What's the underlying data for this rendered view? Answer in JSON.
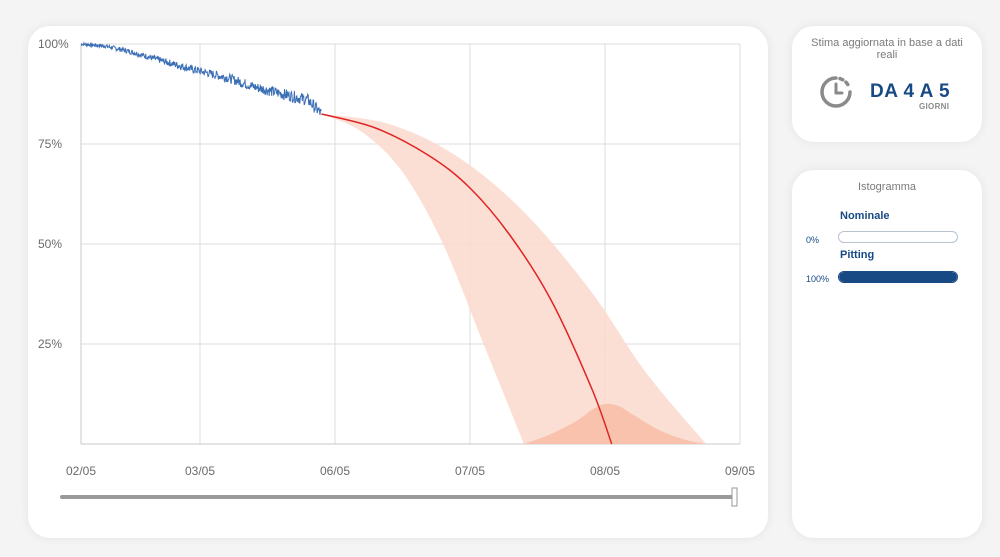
{
  "chart_data": {
    "type": "line",
    "y_ticks": [
      "100%",
      "75%",
      "50%",
      "25%"
    ],
    "x_ticks": [
      "02/05",
      "03/05",
      "06/05",
      "07/05",
      "08/05",
      "09/05"
    ],
    "grid": true,
    "series": [
      {
        "kind": "observed",
        "color": "#3a6eb5",
        "x": [
          0,
          0.2,
          0.4,
          0.6,
          0.8,
          1.0,
          1.2,
          1.4,
          1.6,
          1.8,
          1.9
        ],
        "y": [
          100,
          99.5,
          98.2,
          96.5,
          94.8,
          93.2,
          91.6,
          89.3,
          87.6,
          86.0,
          82.5
        ]
      },
      {
        "kind": "forecast",
        "color": "#e02424",
        "x": [
          1.9,
          2.3,
          2.7,
          3.0,
          3.3,
          3.6,
          3.9,
          4.05
        ],
        "y": [
          82.5,
          79,
          72,
          64,
          52,
          36,
          14,
          0
        ]
      }
    ],
    "band": {
      "color": "#fbd9cd",
      "upper": {
        "x": [
          1.9,
          2.4,
          2.9,
          3.4,
          3.9,
          4.3,
          4.75
        ],
        "y": [
          82.5,
          80,
          72,
          58,
          38,
          18,
          0
        ]
      },
      "lower": {
        "x": [
          1.9,
          2.2,
          2.5,
          2.8,
          3.1,
          3.4
        ],
        "y": [
          82.5,
          78,
          68,
          50,
          25,
          0
        ]
      }
    },
    "distribution": {
      "color": "#f7bfa8",
      "x": [
        3.4,
        3.6,
        3.8,
        3.9,
        4.0,
        4.1,
        4.2,
        4.4,
        4.6,
        4.75
      ],
      "y": [
        0,
        2.5,
        6,
        8.5,
        10,
        9.5,
        7.5,
        3.5,
        1,
        0
      ]
    },
    "slider_value": 1.0
  },
  "estimate": {
    "title": "Stima aggiornata in base a dati reali",
    "icon": "clock-icon",
    "value": "DA 4 A 5",
    "unit": "GIORNI"
  },
  "histogram": {
    "title": "Istogramma",
    "items": [
      {
        "label": "Nominale",
        "percent": "0%",
        "value": 0
      },
      {
        "label": "Pitting",
        "percent": "100%",
        "value": 1
      }
    ]
  },
  "colors": {
    "accent": "#174a84"
  }
}
